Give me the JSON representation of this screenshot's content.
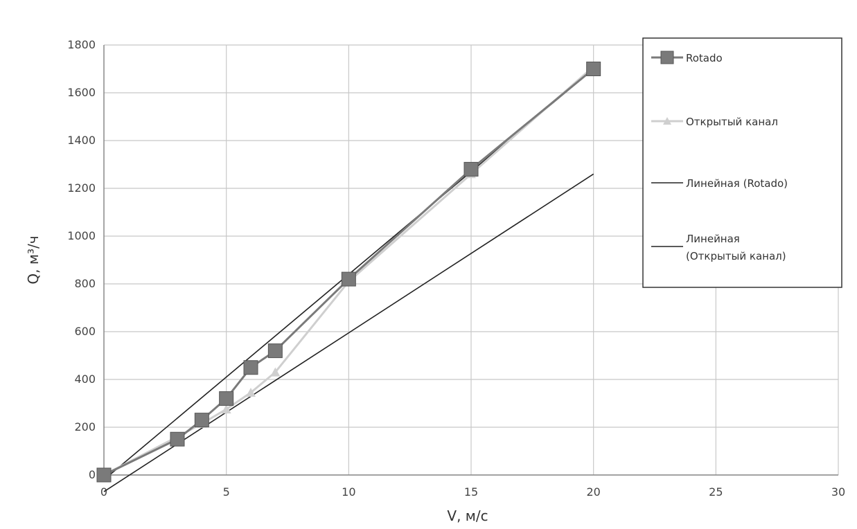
{
  "chart_data": {
    "type": "line",
    "xlabel": "V, м/с",
    "ylabel": "Q, м³/ч",
    "xlim": [
      0,
      30
    ],
    "ylim": [
      0,
      1800
    ],
    "xticks": [
      0,
      5,
      10,
      15,
      20,
      25,
      30
    ],
    "yticks": [
      0,
      200,
      400,
      600,
      800,
      1000,
      1200,
      1400,
      1600,
      1800
    ],
    "grid": true,
    "legend_position": "top-right",
    "series": [
      {
        "name": "Rotado",
        "kind": "line-markers",
        "marker": "square",
        "color": "#7a7a7a",
        "x": [
          0,
          3,
          4,
          5,
          6,
          7,
          10,
          15,
          20
        ],
        "y": [
          0,
          150,
          230,
          320,
          450,
          520,
          820,
          1280,
          1700
        ]
      },
      {
        "name": "Открытый канал",
        "kind": "line-markers",
        "marker": "triangle",
        "color": "#cfcfcf",
        "x": [
          0,
          3,
          4,
          5,
          6,
          7,
          10,
          15,
          20
        ],
        "y": [
          0,
          160,
          215,
          275,
          345,
          430,
          810,
          1260,
          1710
        ]
      },
      {
        "name": "Линейная (Rotado)",
        "kind": "trendline",
        "color": "#222222",
        "x": [
          0,
          20
        ],
        "y": [
          -20,
          1700
        ]
      },
      {
        "name": "Линейная (Открытый канал)",
        "kind": "trendline",
        "color": "#222222",
        "x": [
          0,
          20
        ],
        "y": [
          -70,
          1260
        ]
      }
    ],
    "legend": [
      {
        "label": "Rotado",
        "series": 0
      },
      {
        "label": "Открытый канал",
        "series": 1
      },
      {
        "label": "Линейная (Rotado)",
        "series": 2
      },
      {
        "label": "Линейная (Открытый канал)",
        "series": 3,
        "lines": [
          "Линейная",
          "(Открытый канал)"
        ]
      }
    ]
  }
}
